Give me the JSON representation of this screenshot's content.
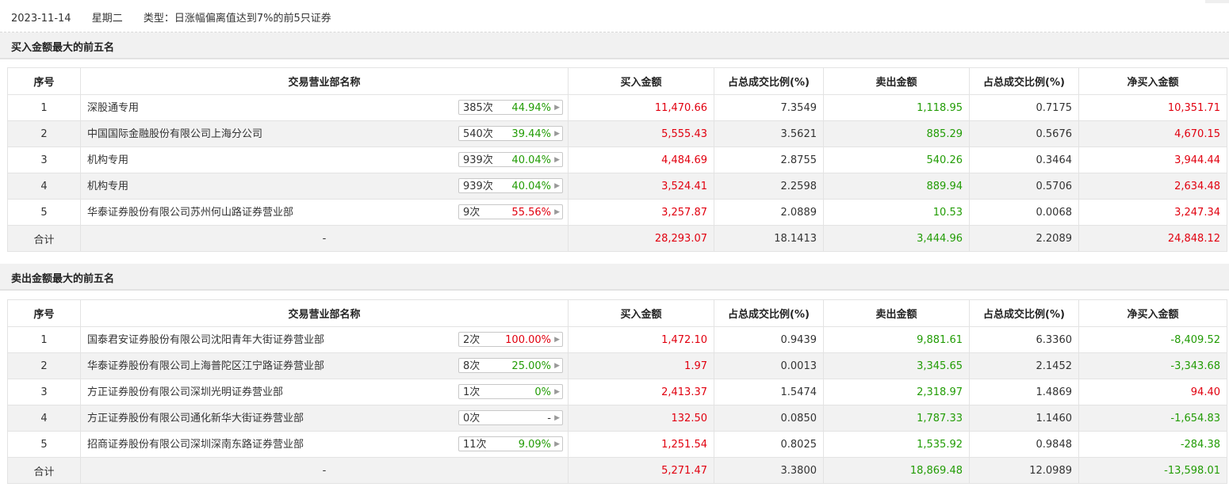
{
  "header": {
    "date": "2023-11-14",
    "weekday": "星期二",
    "type_text": "类型：日涨幅偏离值达到7%的前5只证券"
  },
  "columns": [
    "序号",
    "交易营业部名称",
    "买入金额",
    "占总成交比例(%)",
    "卖出金额",
    "占总成交比例(%)",
    "净买入金额"
  ],
  "colors": {
    "red": "#e1000f",
    "green": "#229c05"
  },
  "buy_section": {
    "title": "买入金额最大的前五名",
    "rows": [
      {
        "idx": "1",
        "name": "深股通专用",
        "count": "385次",
        "pct": "44.94%",
        "pct_color": "green",
        "buy": "11,470.66",
        "buy_ratio": "7.3549",
        "sell": "1,118.95",
        "sell_ratio": "0.7175",
        "net": "10,351.71",
        "net_color": "red"
      },
      {
        "idx": "2",
        "name": "中国国际金融股份有限公司上海分公司",
        "count": "540次",
        "pct": "39.44%",
        "pct_color": "green",
        "buy": "5,555.43",
        "buy_ratio": "3.5621",
        "sell": "885.29",
        "sell_ratio": "0.5676",
        "net": "4,670.15",
        "net_color": "red"
      },
      {
        "idx": "3",
        "name": "机构专用",
        "count": "939次",
        "pct": "40.04%",
        "pct_color": "green",
        "buy": "4,484.69",
        "buy_ratio": "2.8755",
        "sell": "540.26",
        "sell_ratio": "0.3464",
        "net": "3,944.44",
        "net_color": "red"
      },
      {
        "idx": "4",
        "name": "机构专用",
        "count": "939次",
        "pct": "40.04%",
        "pct_color": "green",
        "buy": "3,524.41",
        "buy_ratio": "2.2598",
        "sell": "889.94",
        "sell_ratio": "0.5706",
        "net": "2,634.48",
        "net_color": "red"
      },
      {
        "idx": "5",
        "name": "华泰证券股份有限公司苏州何山路证券营业部",
        "count": "9次",
        "pct": "55.56%",
        "pct_color": "red",
        "buy": "3,257.87",
        "buy_ratio": "2.0889",
        "sell": "10.53",
        "sell_ratio": "0.0068",
        "net": "3,247.34",
        "net_color": "red"
      }
    ],
    "total": {
      "label": "合计",
      "name": "-",
      "buy": "28,293.07",
      "buy_ratio": "18.1413",
      "sell": "3,444.96",
      "sell_ratio": "2.2089",
      "net": "24,848.12",
      "net_color": "red"
    }
  },
  "sell_section": {
    "title": "卖出金额最大的前五名",
    "rows": [
      {
        "idx": "1",
        "name": "国泰君安证券股份有限公司沈阳青年大街证券营业部",
        "count": "2次",
        "pct": "100.00%",
        "pct_color": "red",
        "buy": "1,472.10",
        "buy_ratio": "0.9439",
        "sell": "9,881.61",
        "sell_ratio": "6.3360",
        "net": "-8,409.52",
        "net_color": "green"
      },
      {
        "idx": "2",
        "name": "华泰证券股份有限公司上海普陀区江宁路证券营业部",
        "count": "8次",
        "pct": "25.00%",
        "pct_color": "green",
        "buy": "1.97",
        "buy_ratio": "0.0013",
        "sell": "3,345.65",
        "sell_ratio": "2.1452",
        "net": "-3,343.68",
        "net_color": "green"
      },
      {
        "idx": "3",
        "name": "方正证券股份有限公司深圳光明证券营业部",
        "count": "1次",
        "pct": "0%",
        "pct_color": "green",
        "buy": "2,413.37",
        "buy_ratio": "1.5474",
        "sell": "2,318.97",
        "sell_ratio": "1.4869",
        "net": "94.40",
        "net_color": "red"
      },
      {
        "idx": "4",
        "name": "方正证券股份有限公司通化新华大街证券营业部",
        "count": "0次",
        "pct": "-",
        "pct_color": "dark",
        "buy": "132.50",
        "buy_ratio": "0.0850",
        "sell": "1,787.33",
        "sell_ratio": "1.1460",
        "net": "-1,654.83",
        "net_color": "green"
      },
      {
        "idx": "5",
        "name": "招商证券股份有限公司深圳深南东路证券营业部",
        "count": "11次",
        "pct": "9.09%",
        "pct_color": "green",
        "buy": "1,251.54",
        "buy_ratio": "0.8025",
        "sell": "1,535.92",
        "sell_ratio": "0.9848",
        "net": "-284.38",
        "net_color": "green"
      }
    ],
    "total": {
      "label": "合计",
      "name": "-",
      "buy": "5,271.47",
      "buy_ratio": "3.3800",
      "sell": "18,869.48",
      "sell_ratio": "12.0989",
      "net": "-13,598.01",
      "net_color": "green"
    }
  }
}
